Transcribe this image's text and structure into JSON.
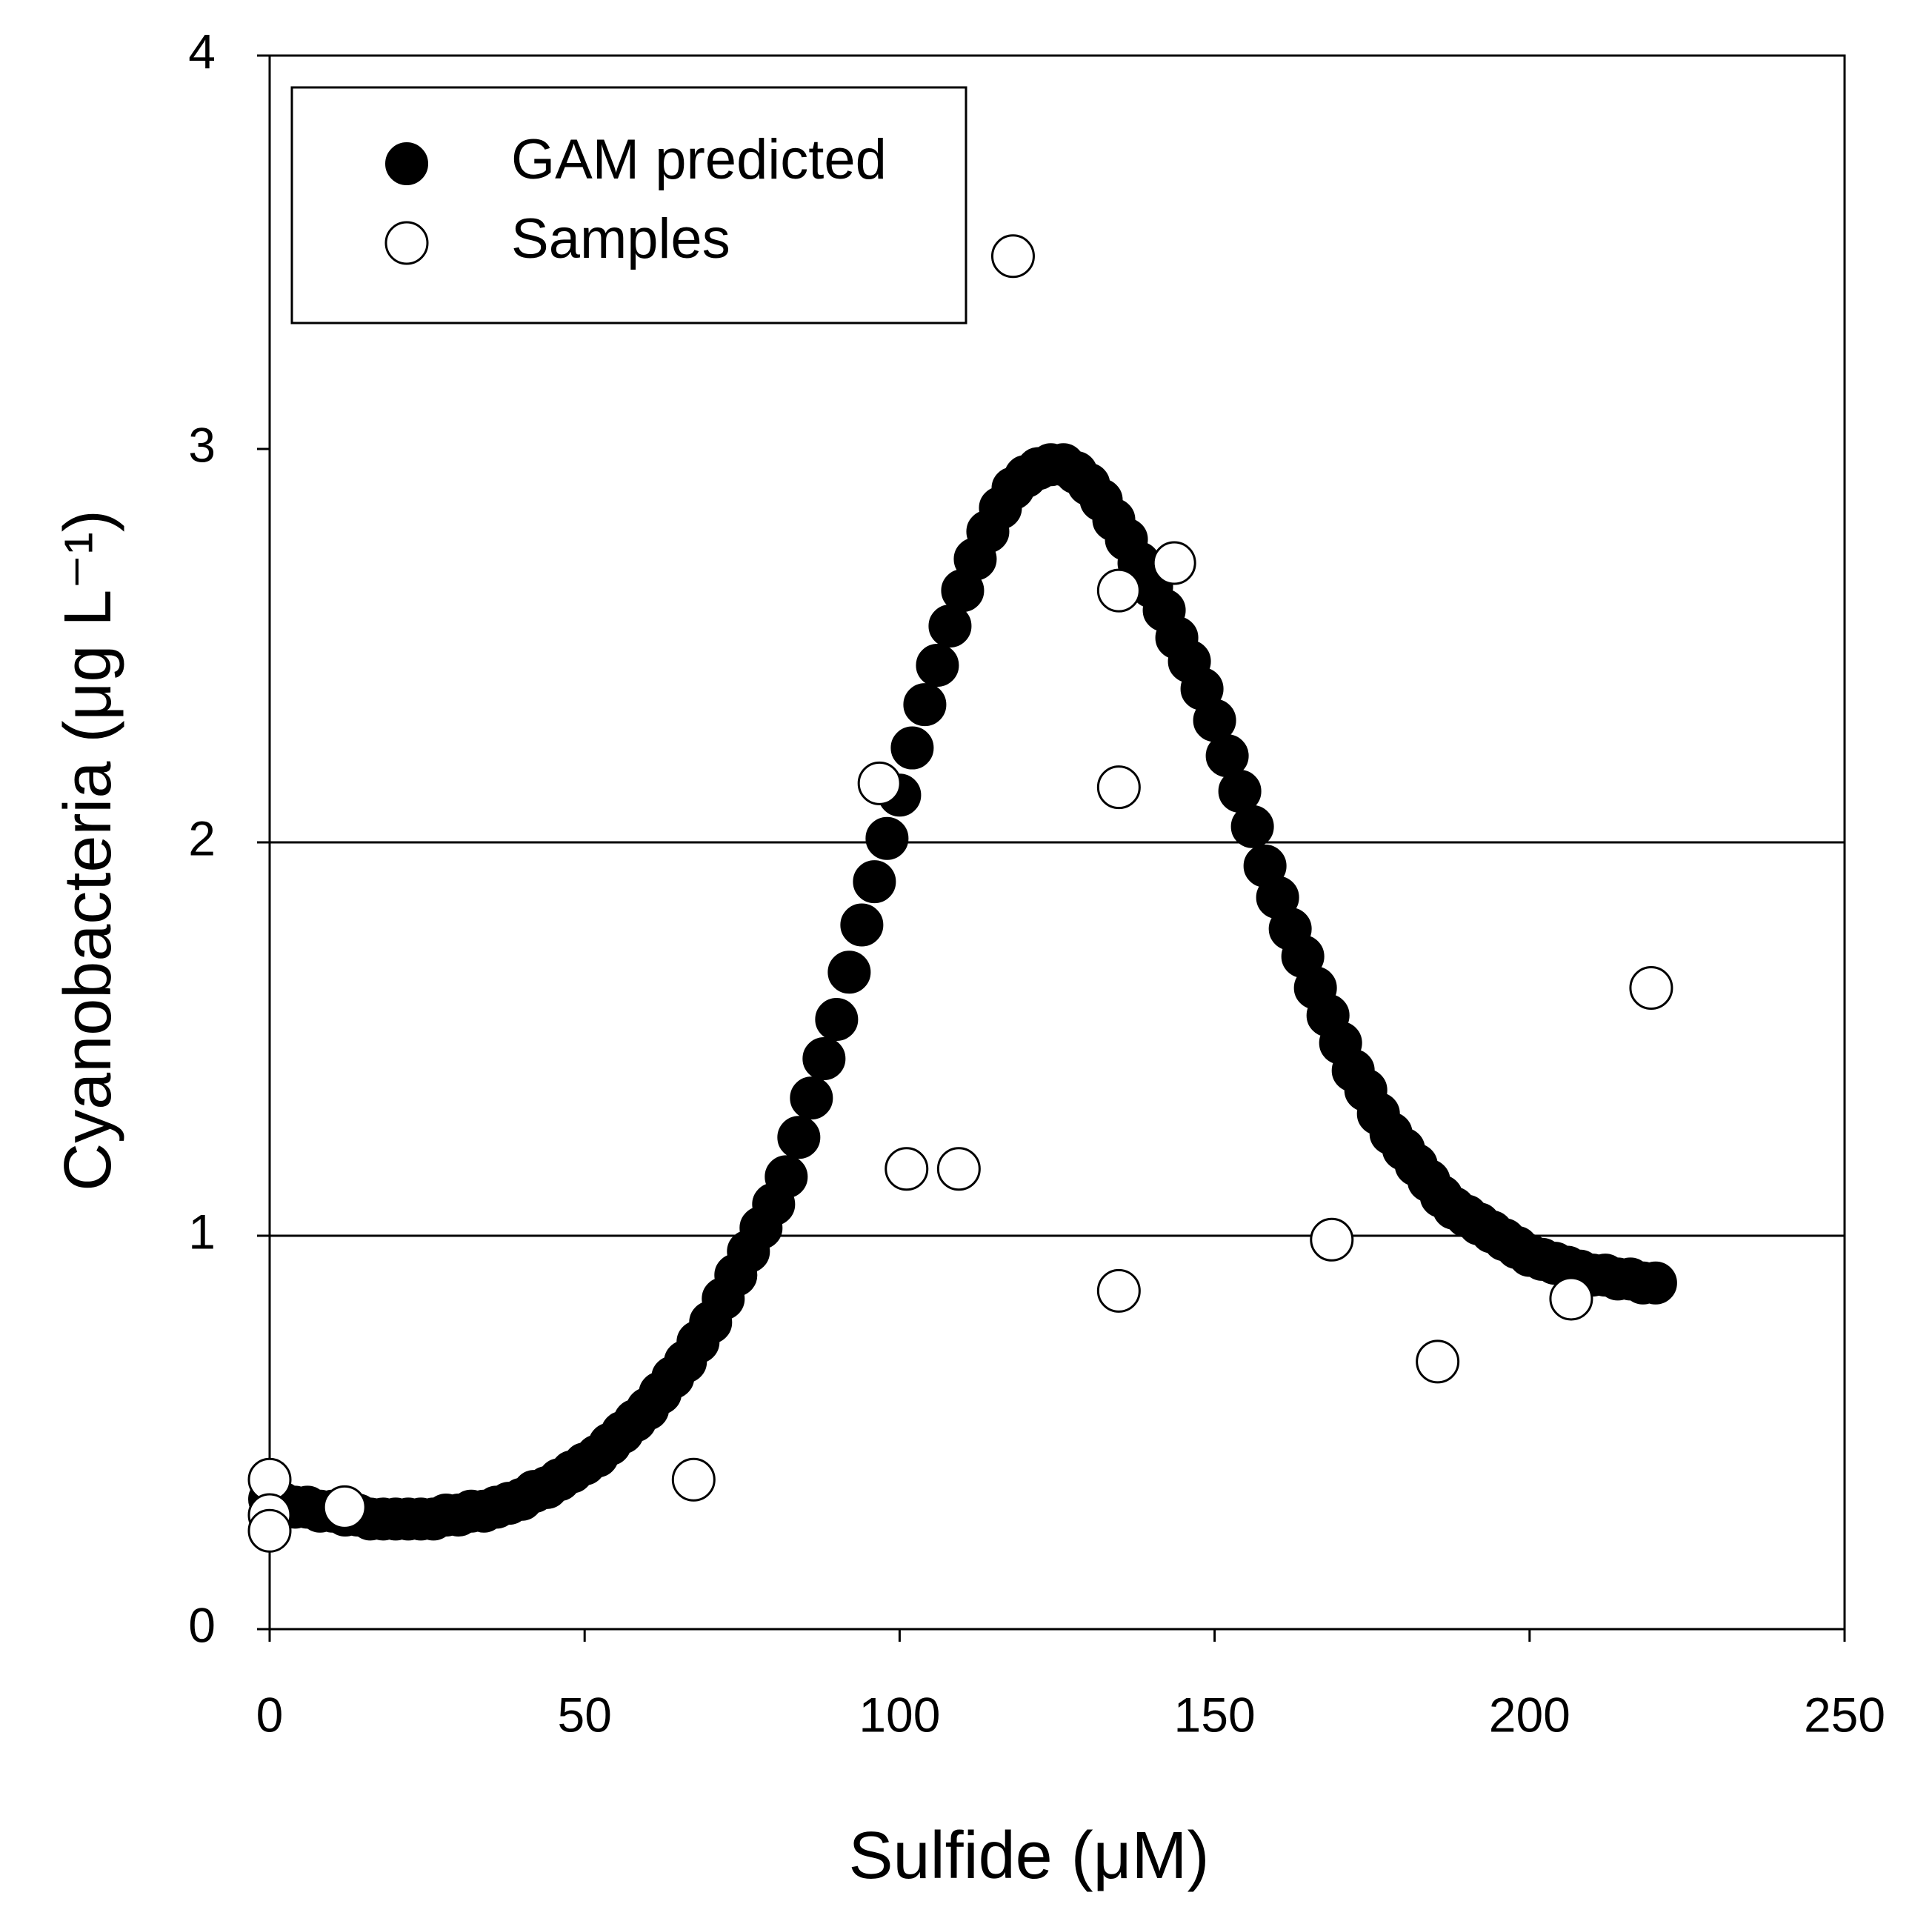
{
  "chart_data": {
    "type": "scatter",
    "xlabel": "Sulfide (μM)",
    "ylabel": "Cyanobacteria (μg L⁻¹)",
    "xlim": [
      0,
      250
    ],
    "xticks": [
      0,
      50,
      100,
      150,
      200,
      250
    ],
    "ylim": [
      0,
      4
    ],
    "yticks": [
      0,
      1,
      2,
      3,
      4
    ],
    "ygrid": [
      1,
      2
    ],
    "legend": "upper left",
    "series": [
      {
        "name": "GAM predicted",
        "color": "#000000",
        "marker": "filled",
        "x": [
          0,
          2,
          4,
          6,
          8,
          10,
          12,
          14,
          16,
          18,
          20,
          22,
          24,
          26,
          28,
          30,
          32,
          34,
          36,
          38,
          40,
          42,
          44,
          46,
          48,
          50,
          52,
          54,
          56,
          58,
          60,
          62,
          64,
          66,
          68,
          70,
          72,
          74,
          76,
          78,
          80,
          82,
          84,
          86,
          88,
          90,
          92,
          94,
          96,
          98,
          100,
          102,
          104,
          106,
          108,
          110,
          112,
          114,
          116,
          118,
          120,
          122,
          124,
          126,
          128,
          130,
          132,
          134,
          136,
          138,
          140,
          142,
          144,
          146,
          148,
          150,
          152,
          154,
          156,
          158,
          160,
          162,
          164,
          166,
          168,
          170,
          172,
          174,
          176,
          178,
          180,
          182,
          184,
          186,
          188,
          190,
          192,
          194,
          196,
          198,
          200,
          202,
          204,
          206,
          208,
          210,
          212,
          214,
          216,
          218,
          220
        ],
        "values": [
          0.33,
          0.32,
          0.31,
          0.31,
          0.3,
          0.3,
          0.29,
          0.29,
          0.28,
          0.28,
          0.28,
          0.28,
          0.28,
          0.28,
          0.29,
          0.29,
          0.3,
          0.3,
          0.31,
          0.32,
          0.33,
          0.35,
          0.36,
          0.38,
          0.4,
          0.42,
          0.44,
          0.47,
          0.5,
          0.53,
          0.56,
          0.6,
          0.64,
          0.68,
          0.73,
          0.78,
          0.84,
          0.9,
          0.96,
          1.02,
          1.08,
          1.15,
          1.25,
          1.35,
          1.45,
          1.55,
          1.67,
          1.79,
          1.9,
          2.01,
          2.12,
          2.24,
          2.35,
          2.45,
          2.55,
          2.64,
          2.72,
          2.79,
          2.85,
          2.9,
          2.93,
          2.95,
          2.96,
          2.96,
          2.94,
          2.91,
          2.87,
          2.82,
          2.77,
          2.71,
          2.65,
          2.59,
          2.52,
          2.46,
          2.39,
          2.31,
          2.22,
          2.13,
          2.04,
          1.94,
          1.86,
          1.78,
          1.71,
          1.63,
          1.56,
          1.49,
          1.42,
          1.37,
          1.31,
          1.26,
          1.22,
          1.18,
          1.14,
          1.1,
          1.07,
          1.05,
          1.03,
          1.01,
          0.99,
          0.97,
          0.95,
          0.94,
          0.93,
          0.92,
          0.91,
          0.9,
          0.9,
          0.89,
          0.89,
          0.88,
          0.88
        ]
      },
      {
        "name": "Samples",
        "color": "#000000",
        "marker": "hollow",
        "x": [
          0,
          0,
          0,
          11.9,
          67.3,
          96.8,
          101.1,
          109.4,
          118.0,
          134.8,
          134.8,
          134.8,
          143.6,
          168.6,
          185.4,
          206.6,
          219.3
        ],
        "values": [
          0.38,
          0.29,
          0.25,
          0.31,
          0.38,
          2.15,
          1.17,
          1.17,
          3.49,
          2.64,
          2.14,
          0.86,
          2.71,
          0.99,
          0.68,
          0.84,
          1.63
        ]
      }
    ]
  }
}
